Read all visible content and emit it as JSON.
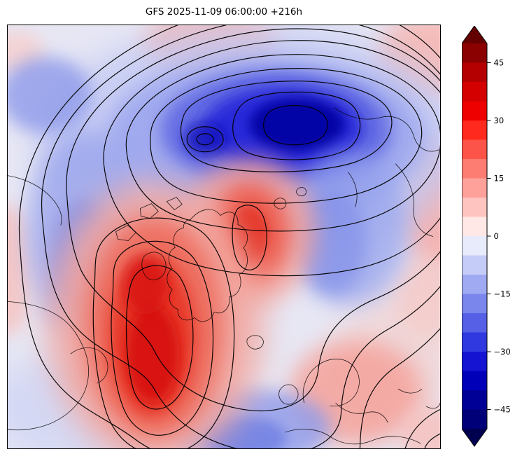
{
  "title": "GFS 2025-11-09 06:00:00 +216h",
  "chart_data": {
    "type": "heatmap",
    "subtype": "filled-contour-anomaly-map",
    "title": "GFS 2025-11-09 06:00:00 +216h",
    "model": "GFS",
    "valid_time": "2025-11-09 06:00:00",
    "forecast_hour": "+216h",
    "projection": "north-polar-stereographic",
    "overlays": [
      "black contour lines (nested around polar vortex)",
      "coastlines"
    ],
    "colorbar": {
      "orientation": "vertical",
      "ticks": [
        45,
        30,
        15,
        0,
        -15,
        -30,
        -45
      ],
      "tick_labels": [
        "45",
        "30",
        "15",
        "0",
        "−15",
        "−30",
        "−45"
      ],
      "vmin": -50,
      "vmax": 50,
      "extend": "both",
      "segment_colors_top_to_bottom": [
        "#8b0000",
        "#b40000",
        "#d40000",
        "#ee0000",
        "#ff2a1d",
        "#fc5448",
        "#fd7d72",
        "#fea19a",
        "#fec5c0",
        "#ffe8e6",
        "#e8ebfc",
        "#c6ccf8",
        "#a0aaf2",
        "#7a86ec",
        "#5560e6",
        "#3038e0",
        "#1414d2",
        "#0000b8",
        "#000096",
        "#000078"
      ],
      "extend_colors": {
        "over": "#650000",
        "under": "#000050"
      }
    },
    "anomaly_regions": [
      {
        "sign": "negative",
        "approx_peak": -50,
        "location_frac": {
          "x": 0.65,
          "y": 0.19
        },
        "note": "deep polar low, top-center-right"
      },
      {
        "sign": "negative",
        "approx_peak": -35,
        "location_frac": {
          "x": 0.45,
          "y": 0.21
        },
        "note": "secondary low left of pole"
      },
      {
        "sign": "positive",
        "approx_peak": 45,
        "location_frac": {
          "x": 0.34,
          "y": 0.73
        },
        "note": "strong warm/positive anomaly, center-left lower"
      },
      {
        "sign": "positive",
        "approx_peak": 30,
        "location_frac": {
          "x": 0.56,
          "y": 0.49
        },
        "note": "positive anomaly at map center"
      },
      {
        "sign": "positive",
        "approx_peak": 15,
        "location_frac": {
          "x": 0.79,
          "y": 0.86
        },
        "note": "positive anomaly bottom-right"
      },
      {
        "sign": "negative",
        "approx_peak": -15,
        "location_frac": {
          "x": 0.17,
          "y": 0.52
        },
        "note": "negative lobe left side"
      },
      {
        "sign": "negative",
        "approx_peak": -15,
        "location_frac": {
          "x": 0.55,
          "y": 0.95
        },
        "note": "negative lobe bottom center"
      }
    ]
  }
}
